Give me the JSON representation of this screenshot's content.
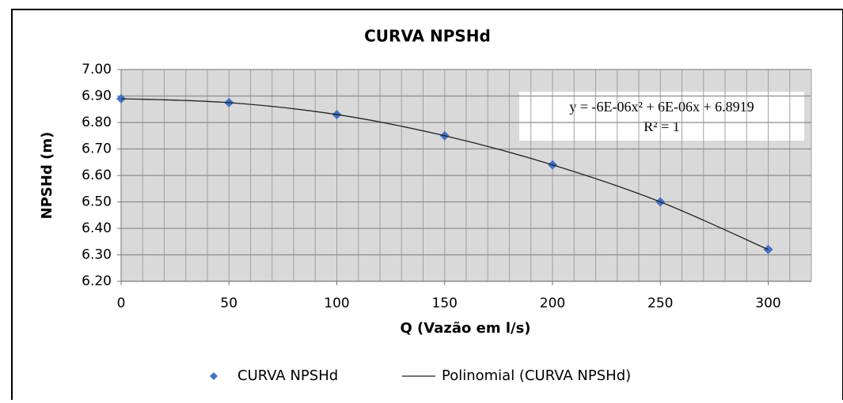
{
  "chart_data": {
    "type": "scatter",
    "title": "CURVA NPSHd",
    "x_label": "Q (Vazão em l/s)",
    "y_label": "NPSHd (m)",
    "x": [
      0,
      50,
      100,
      150,
      200,
      250,
      300
    ],
    "series": [
      {
        "name": "CURVA NPSHd",
        "color": "#4472c4",
        "marker": "diamond",
        "values": [
          6.89,
          6.875,
          6.83,
          6.75,
          6.64,
          6.5,
          6.32
        ]
      },
      {
        "name": "Polinomial (CURVA NPSHd)",
        "color": "#222222",
        "line": true,
        "values": [
          6.89,
          6.875,
          6.83,
          6.75,
          6.64,
          6.5,
          6.32
        ]
      }
    ],
    "annotations": [
      "y = -6E-06x² + 6E-06x + 6.8919",
      "R² = 1"
    ],
    "xlim": [
      0,
      320
    ],
    "ylim": [
      6.2,
      7.0
    ],
    "xticks": [
      0,
      50,
      100,
      150,
      200,
      250,
      300
    ],
    "x_minor_step": 10,
    "yticks": [
      {
        "value": 6.2,
        "label": "6.20"
      },
      {
        "value": 6.3,
        "label": "6.30"
      },
      {
        "value": 6.4,
        "label": "6.40"
      },
      {
        "value": 6.5,
        "label": "6.50"
      },
      {
        "value": 6.6,
        "label": "6.60"
      },
      {
        "value": 6.7,
        "label": "6.70"
      },
      {
        "value": 6.8,
        "label": "6.80"
      },
      {
        "value": 6.9,
        "label": "6.90"
      },
      {
        "value": 7.0,
        "label": "7.00"
      }
    ],
    "grid": true,
    "legend": "bottom"
  }
}
